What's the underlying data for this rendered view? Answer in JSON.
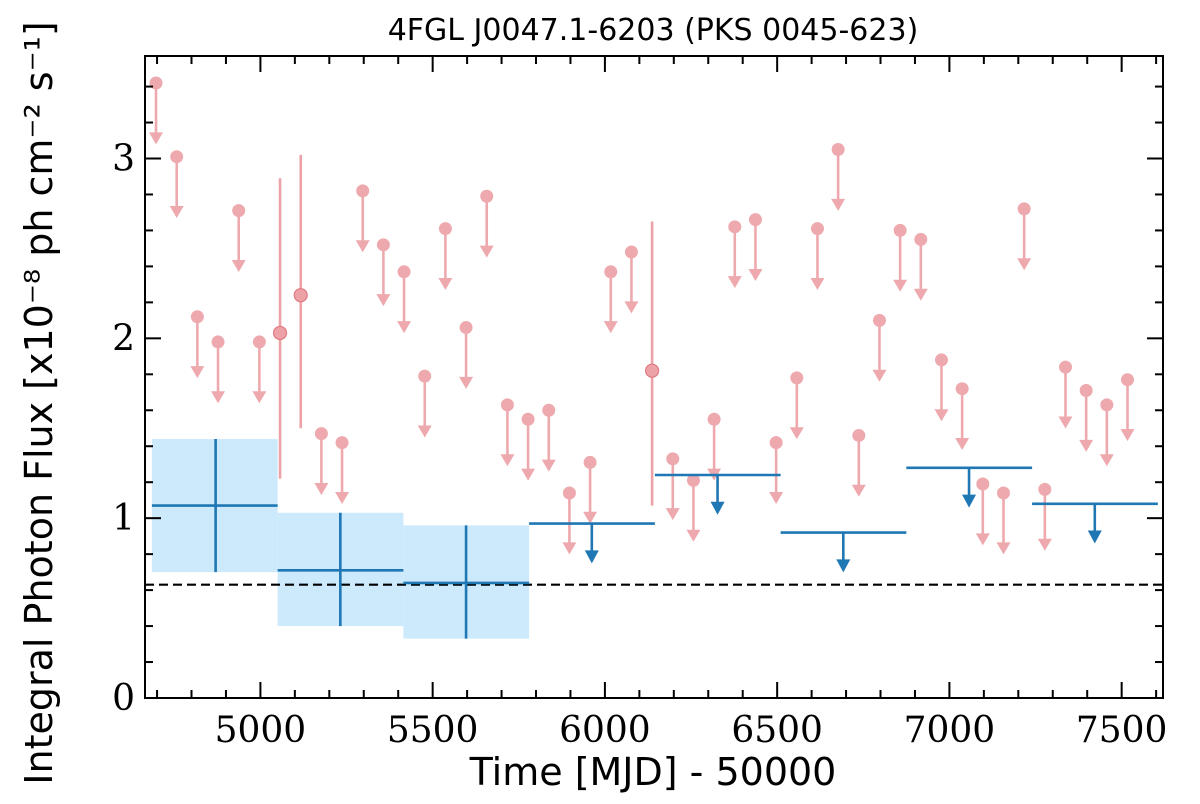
{
  "chart_data": {
    "type": "scatter",
    "title": "4FGL J0047.1-6203 (PKS 0045-623)",
    "xlabel": "Time [MJD] - 50000",
    "ylabel": "Integral Photon Flux [x10⁻⁸ ph cm⁻² s⁻¹]",
    "xlim": [
      4665,
      7620
    ],
    "ylim": [
      0,
      3.57
    ],
    "xticks": [
      5000,
      5500,
      6000,
      6500,
      7000,
      7500
    ],
    "yticks": [
      0,
      1,
      2,
      3
    ],
    "reference_line": {
      "y": 0.63,
      "style": "dashed",
      "color": "#000000"
    },
    "colors": {
      "monthly": "#e8898f",
      "yearly": "#1f77b4",
      "yearly_band": "#cdeafc"
    },
    "series": [
      {
        "kind": "monthly_upper_limits",
        "points": [
          {
            "x": 4697,
            "y": 3.42
          },
          {
            "x": 4757,
            "y": 3.01
          },
          {
            "x": 4817,
            "y": 2.12
          },
          {
            "x": 4877,
            "y": 1.98
          },
          {
            "x": 4937,
            "y": 2.71
          },
          {
            "x": 4997,
            "y": 1.98
          },
          {
            "x": 5177,
            "y": 1.47
          },
          {
            "x": 5237,
            "y": 1.42
          },
          {
            "x": 5297,
            "y": 2.82
          },
          {
            "x": 5357,
            "y": 2.52
          },
          {
            "x": 5417,
            "y": 2.37
          },
          {
            "x": 5477,
            "y": 1.79
          },
          {
            "x": 5537,
            "y": 2.61
          },
          {
            "x": 5597,
            "y": 2.06
          },
          {
            "x": 5657,
            "y": 2.79
          },
          {
            "x": 5717,
            "y": 1.63
          },
          {
            "x": 5777,
            "y": 1.55
          },
          {
            "x": 5837,
            "y": 1.6
          },
          {
            "x": 5897,
            "y": 1.14
          },
          {
            "x": 5957,
            "y": 1.31
          },
          {
            "x": 6017,
            "y": 2.37
          },
          {
            "x": 6077,
            "y": 2.48
          },
          {
            "x": 6197,
            "y": 1.33
          },
          {
            "x": 6257,
            "y": 1.21
          },
          {
            "x": 6317,
            "y": 1.55
          },
          {
            "x": 6377,
            "y": 2.62
          },
          {
            "x": 6437,
            "y": 2.66
          },
          {
            "x": 6497,
            "y": 1.42
          },
          {
            "x": 6557,
            "y": 1.78
          },
          {
            "x": 6617,
            "y": 2.61
          },
          {
            "x": 6677,
            "y": 3.05
          },
          {
            "x": 6737,
            "y": 1.46
          },
          {
            "x": 6797,
            "y": 2.1
          },
          {
            "x": 6857,
            "y": 2.6
          },
          {
            "x": 6917,
            "y": 2.55
          },
          {
            "x": 6977,
            "y": 1.88
          },
          {
            "x": 7037,
            "y": 1.72
          },
          {
            "x": 7097,
            "y": 1.19
          },
          {
            "x": 7157,
            "y": 1.14
          },
          {
            "x": 7217,
            "y": 2.72
          },
          {
            "x": 7277,
            "y": 1.16
          },
          {
            "x": 7337,
            "y": 1.84
          },
          {
            "x": 7397,
            "y": 1.71
          },
          {
            "x": 7457,
            "y": 1.63
          },
          {
            "x": 7517,
            "y": 1.77
          }
        ]
      },
      {
        "kind": "monthly_detections",
        "points": [
          {
            "x": 5057,
            "y": 2.03,
            "ylow": 1.22,
            "yhigh": 2.89
          },
          {
            "x": 5117,
            "y": 2.24,
            "ylow": 1.5,
            "yhigh": 3.02
          },
          {
            "x": 6137,
            "y": 1.82,
            "ylow": 1.07,
            "yhigh": 2.65
          }
        ]
      },
      {
        "kind": "yearly_detections",
        "points": [
          {
            "x": 4870,
            "xlow": 4685,
            "xhigh": 5050,
            "y": 1.07,
            "ylow": 0.7,
            "yhigh": 1.44
          },
          {
            "x": 5232,
            "xlow": 5050,
            "xhigh": 5415,
            "y": 0.71,
            "ylow": 0.4,
            "yhigh": 1.03
          },
          {
            "x": 5597,
            "xlow": 5415,
            "xhigh": 5780,
            "y": 0.64,
            "ylow": 0.33,
            "yhigh": 0.96
          }
        ]
      },
      {
        "kind": "yearly_upper_limits",
        "points": [
          {
            "x": 5962,
            "xlow": 5780,
            "xhigh": 6145,
            "y": 0.97
          },
          {
            "x": 6327,
            "xlow": 6145,
            "xhigh": 6510,
            "y": 1.24
          },
          {
            "x": 6692,
            "xlow": 6510,
            "xhigh": 6875,
            "y": 0.92
          },
          {
            "x": 7057,
            "xlow": 6875,
            "xhigh": 7240,
            "y": 1.28
          },
          {
            "x": 7422,
            "xlow": 7240,
            "xhigh": 7605,
            "y": 1.08
          }
        ]
      }
    ]
  }
}
